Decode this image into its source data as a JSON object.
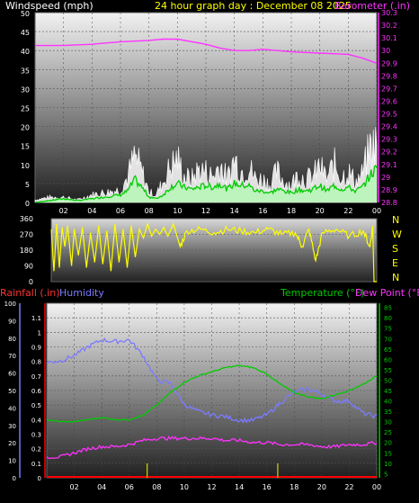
{
  "header": {
    "left_title": "Windspeed (mph)",
    "center_title": "24 hour graph day : December 08 2025",
    "right_title": "Barometer (.in)"
  },
  "colors": {
    "background": "#000000",
    "windspeed": "#ffffff",
    "wind_gust_fill": "#b9f5b9",
    "wind_avg": "#00cc00",
    "barometer": "#ff33ff",
    "direction": "#ffff00",
    "rainfall": "#ff0000",
    "humidity": "#7b7bff",
    "temperature": "#00cc00",
    "dew_point": "#ff33ff",
    "axis_labels": "#ffffff",
    "center_title": "#ffff00"
  },
  "chart_data": [
    {
      "type": "line",
      "title": "24 hour graph day : December 08 2025",
      "x_ticks": [
        "02",
        "04",
        "06",
        "08",
        "10",
        "12",
        "14",
        "16",
        "18",
        "20",
        "22",
        "00"
      ],
      "left_axis": {
        "label": "Windspeed (mph)",
        "ticks": [
          "0",
          "5",
          "10",
          "15",
          "20",
          "25",
          "30",
          "35",
          "40",
          "45",
          "50"
        ],
        "range": [
          0,
          50
        ]
      },
      "right_axis": {
        "label": "Barometer (.in)",
        "ticks": [
          "28.8",
          "28.9",
          "29",
          "29.1",
          "29.2",
          "29.3",
          "29.4",
          "29.5",
          "29.6",
          "29.7",
          "29.8",
          "29.9",
          "30",
          "30.1",
          "30.2",
          "30.3"
        ],
        "range": [
          28.8,
          30.3
        ]
      },
      "x_hours": [
        0,
        2,
        4,
        6,
        8,
        9,
        10,
        12,
        13,
        14,
        15,
        16,
        18,
        20,
        22,
        23,
        24
      ],
      "series": [
        {
          "name": "Barometer (.in)",
          "axis": "right",
          "values": [
            30.04,
            30.04,
            30.05,
            30.07,
            30.08,
            30.09,
            30.09,
            30.05,
            30.02,
            30.0,
            30.0,
            30.01,
            29.99,
            29.98,
            29.97,
            29.94,
            29.9
          ]
        }
      ],
      "wind_hours": [
        0,
        1,
        2,
        3,
        4,
        5,
        6,
        6.5,
        7,
        7.5,
        8,
        8.5,
        9,
        9.5,
        10,
        10.5,
        11,
        11.5,
        12,
        12.5,
        13,
        13.5,
        14,
        14.5,
        15,
        15.5,
        16,
        16.5,
        17,
        17.5,
        18,
        18.5,
        19,
        19.5,
        20,
        20.5,
        21,
        21.5,
        22,
        22.5,
        23,
        23.5,
        24
      ],
      "wind_gust": [
        1,
        2,
        2,
        1,
        3,
        4,
        5,
        10,
        18,
        12,
        4,
        3,
        8,
        14,
        17,
        10,
        9,
        13,
        12,
        10,
        15,
        9,
        17,
        12,
        14,
        9,
        9,
        7,
        12,
        8,
        7,
        11,
        9,
        10,
        14,
        9,
        15,
        10,
        12,
        8,
        11,
        21,
        23
      ],
      "wind_avg": [
        0,
        0.5,
        1,
        0.5,
        1,
        1.5,
        2,
        3,
        6,
        4,
        1.5,
        1,
        2,
        4,
        5,
        4,
        3.5,
        4,
        4.5,
        4,
        5,
        3.5,
        5,
        4.5,
        4.5,
        3,
        3,
        2.5,
        3.5,
        3,
        2.5,
        3.5,
        3,
        3.5,
        4.5,
        3,
        4.5,
        3.5,
        4,
        3,
        4,
        7,
        9
      ]
    },
    {
      "type": "line",
      "y_ticks": [
        "0",
        "90",
        "180",
        "270",
        "360"
      ],
      "y_range": [
        0,
        360
      ],
      "right_labels": [
        "N",
        "W",
        "S",
        "E",
        "N"
      ],
      "series": [
        {
          "name": "Wind direction",
          "x": [
            0,
            0.2,
            0.4,
            0.6,
            0.8,
            1.0,
            1.2,
            1.5,
            1.7,
            2.0,
            2.3,
            2.6,
            2.9,
            3.2,
            3.5,
            3.8,
            4.1,
            4.4,
            4.7,
            5.0,
            5.3,
            5.6,
            5.9,
            6.2,
            6.5,
            6.8,
            7.1,
            7.4,
            7.7,
            8.0,
            8.3,
            8.6,
            9.0,
            9.5,
            10,
            11,
            12,
            13,
            14,
            15,
            16,
            17,
            18,
            18.5,
            19,
            19.5,
            20,
            21,
            22,
            23,
            23.5,
            23.7,
            23.8,
            24
          ],
          "values": [
            300,
            60,
            330,
            80,
            310,
            200,
            320,
            90,
            300,
            150,
            310,
            80,
            280,
            110,
            320,
            100,
            290,
            60,
            330,
            110,
            300,
            80,
            320,
            140,
            300,
            250,
            330,
            260,
            300,
            270,
            310,
            260,
            330,
            200,
            290,
            300,
            280,
            300,
            290,
            280,
            300,
            270,
            280,
            200,
            300,
            120,
            280,
            300,
            260,
            290,
            200,
            320,
            0,
            0
          ]
        }
      ]
    },
    {
      "type": "line",
      "x_ticks": [
        "02",
        "04",
        "06",
        "08",
        "10",
        "12",
        "14",
        "16",
        "18",
        "20",
        "22",
        "00"
      ],
      "left_axis": {
        "label": "Humidity",
        "ticks": [
          "0",
          "10",
          "20",
          "30",
          "40",
          "50",
          "60",
          "70",
          "80",
          "90",
          "100"
        ],
        "range": [
          0,
          100
        ]
      },
      "rain_axis": {
        "label": "Rainfall (.in)",
        "ticks": [
          "0",
          "0.1",
          "0.2",
          "0.3",
          "0.4",
          "0.5",
          "0.6",
          "0.7",
          "0.8",
          "0.9",
          "1",
          "1.1"
        ],
        "range": [
          0,
          1.2
        ]
      },
      "right_axis": {
        "label": "Temperature (°F) Dew Point (°F)",
        "ticks": [
          "5",
          "10",
          "15",
          "20",
          "25",
          "30",
          "35",
          "40",
          "45",
          "50",
          "55",
          "60",
          "65",
          "70",
          "75",
          "80",
          "85"
        ],
        "range": [
          3,
          87
        ]
      },
      "legend": [
        "Rainfall (.in)",
        "Humidity",
        "Temperature (°F)",
        "Dew Point (°F)"
      ],
      "x_hours": [
        0,
        1,
        2,
        3,
        4,
        5,
        6,
        7,
        8,
        9,
        10,
        11,
        12,
        13,
        14,
        15,
        16,
        17,
        18,
        19,
        20,
        21,
        22,
        23,
        24
      ],
      "series": [
        {
          "name": "Humidity",
          "axis": "left",
          "values": [
            66,
            67,
            70,
            75,
            79,
            78,
            79,
            70,
            56,
            54,
            42,
            38,
            36,
            35,
            33,
            33,
            36,
            43,
            49,
            51,
            48,
            44,
            44,
            37,
            35
          ]
        },
        {
          "name": "Temperature (°F)",
          "axis": "right",
          "values": [
            31,
            30,
            30,
            31,
            32,
            31,
            31,
            33,
            38,
            44,
            49,
            52,
            54,
            56,
            57,
            56,
            53,
            48,
            44,
            42,
            41,
            43,
            45,
            48,
            52
          ]
        },
        {
          "name": "Dew Point (°F)",
          "axis": "right",
          "values": [
            13,
            13,
            15,
            17,
            18,
            18,
            19,
            21,
            22,
            22,
            22,
            22,
            22,
            21,
            21,
            20,
            20,
            19,
            19,
            19,
            18,
            18,
            19,
            19,
            20
          ]
        },
        {
          "name": "Rainfall (.in)",
          "axis": "rain",
          "values": [
            0,
            0,
            0,
            0,
            0,
            0,
            0,
            0,
            0,
            0,
            0,
            0,
            0,
            0,
            0,
            0,
            0,
            0,
            0,
            0,
            0,
            0,
            0,
            0,
            0
          ]
        }
      ],
      "rain_spikes_hours": [
        7.3,
        16.8
      ]
    }
  ]
}
